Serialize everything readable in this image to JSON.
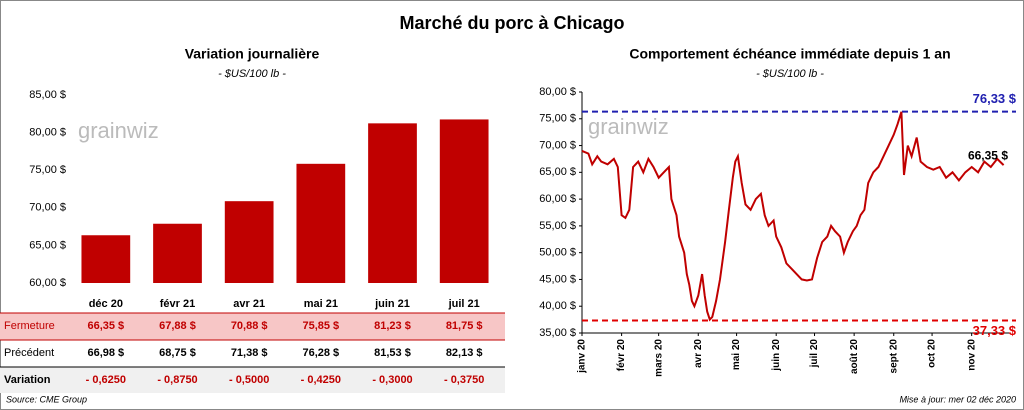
{
  "title": "Marché du porc à Chicago",
  "chart_data": [
    {
      "type": "bar",
      "title": "Variation journalière",
      "subtitle": "- $US/100 lb -",
      "watermark": "grainwiz",
      "categories": [
        "déc 20",
        "févr 21",
        "avr 21",
        "mai 21",
        "juin 21",
        "juil 21"
      ],
      "values": [
        66.35,
        67.88,
        70.88,
        75.85,
        81.23,
        81.75
      ],
      "color": "#c00000",
      "ylim": [
        60,
        85
      ],
      "yticks": [
        {
          "value": 60,
          "label": "60,00 $"
        },
        {
          "value": 65,
          "label": "65,00 $"
        },
        {
          "value": 70,
          "label": "70,00 $"
        },
        {
          "value": 75,
          "label": "75,00 $"
        },
        {
          "value": 80,
          "label": "80,00 $"
        },
        {
          "value": 85,
          "label": "85,00 $"
        }
      ]
    },
    {
      "type": "line",
      "title": "Comportement  échéance immédiate depuis 1 an",
      "subtitle": "- $US/100 lb -",
      "watermark": "grainwiz",
      "x": [
        0,
        5,
        8,
        12,
        15,
        20,
        25,
        28,
        31,
        34,
        37,
        40,
        44,
        48,
        52,
        56,
        60,
        64,
        68,
        70,
        74,
        76,
        80,
        82,
        84,
        86,
        88,
        91,
        94,
        96,
        98,
        100,
        102,
        105,
        108,
        112,
        115,
        118,
        120,
        122,
        125,
        128,
        132,
        136,
        140,
        143,
        146,
        150,
        152,
        156,
        160,
        164,
        168,
        172,
        176,
        180,
        184,
        188,
        192,
        195,
        198,
        202,
        205,
        208,
        212,
        215,
        218,
        221,
        224,
        228,
        232,
        236,
        240,
        244,
        247,
        250,
        252,
        255,
        258,
        262,
        265,
        270,
        275,
        280,
        285,
        290,
        295,
        300,
        305,
        310,
        315,
        320,
        325,
        330
      ],
      "series": [
        {
          "name": "Échéance immédiate",
          "color": "#c00000",
          "values": [
            69,
            68.5,
            66.5,
            68,
            67,
            66.5,
            67.5,
            66,
            57,
            56.5,
            58,
            66,
            67,
            65,
            67.5,
            66,
            64,
            65,
            66,
            60,
            57,
            53,
            50,
            46,
            44,
            41,
            40,
            42,
            46,
            42,
            39,
            37.5,
            38,
            41,
            45,
            52,
            58,
            64,
            67,
            68,
            63,
            59,
            58,
            60,
            61,
            57,
            55,
            56,
            53,
            51,
            48,
            47,
            46,
            45,
            44.8,
            45,
            49,
            52,
            53,
            55,
            54,
            53,
            50,
            52,
            54,
            55,
            57,
            58,
            63,
            65,
            66,
            68,
            70,
            72,
            74,
            76.3,
            64.5,
            70,
            68,
            71.5,
            67,
            66,
            65.5,
            66,
            64,
            65,
            63.5,
            65,
            66,
            65,
            67,
            66,
            67.5,
            66.35
          ]
        }
      ],
      "xlim": [
        0,
        335
      ],
      "xticks": [
        {
          "value": 0,
          "label": "janv 20"
        },
        {
          "value": 31,
          "label": "févr 20"
        },
        {
          "value": 60,
          "label": "mars 20"
        },
        {
          "value": 91,
          "label": "avr 20"
        },
        {
          "value": 121,
          "label": "mai 20"
        },
        {
          "value": 152,
          "label": "juin 20"
        },
        {
          "value": 182,
          "label": "juil 20"
        },
        {
          "value": 213,
          "label": "août 20"
        },
        {
          "value": 244,
          "label": "sept 20"
        },
        {
          "value": 274,
          "label": "oct 20"
        },
        {
          "value": 305,
          "label": "nov 20"
        }
      ],
      "ylim": [
        35,
        80
      ],
      "yticks": [
        {
          "value": 35,
          "label": "35,00 $"
        },
        {
          "value": 40,
          "label": "40,00 $"
        },
        {
          "value": 45,
          "label": "45,00 $"
        },
        {
          "value": 50,
          "label": "50,00 $"
        },
        {
          "value": 55,
          "label": "55,00 $"
        },
        {
          "value": 60,
          "label": "60,00 $"
        },
        {
          "value": 65,
          "label": "65,00 $"
        },
        {
          "value": 70,
          "label": "70,00 $"
        },
        {
          "value": 75,
          "label": "75,00 $"
        },
        {
          "value": 80,
          "label": "80,00 $"
        }
      ],
      "reference_lines": [
        {
          "value": 76.33,
          "label": "76,33 $",
          "color": "#2020b0"
        },
        {
          "value": 37.33,
          "label": "37,33 $",
          "color": "#e00000"
        }
      ],
      "end_label": {
        "value": 66.35,
        "label": "66,35 $"
      }
    }
  ],
  "table": {
    "rows": [
      {
        "label": "Fermeture",
        "cells": [
          "66,35  $",
          "67,88  $",
          "70,88  $",
          "75,85  $",
          "81,23  $",
          "81,75  $"
        ]
      },
      {
        "label": "Précédent",
        "cells": [
          "66,98  $",
          "68,75  $",
          "71,38  $",
          "76,28  $",
          "81,53  $",
          "82,13  $"
        ]
      },
      {
        "label": "Variation",
        "cells": [
          "- 0,6250",
          "- 0,8750",
          "- 0,5000",
          "- 0,4250",
          "- 0,3000",
          "- 0,3750"
        ]
      }
    ]
  },
  "source": "Source: CME Group",
  "updated": "Mise à jour: mer 02 déc 2020"
}
